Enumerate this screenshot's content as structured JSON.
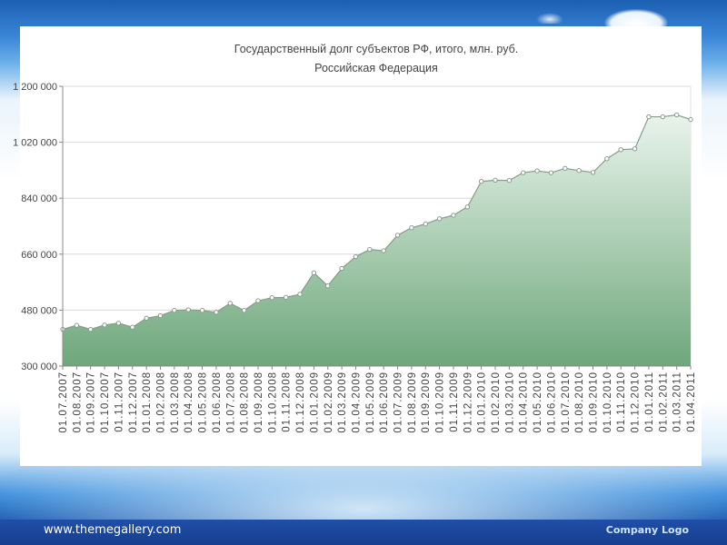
{
  "footer": {
    "url": "www.themegallery.com",
    "logo_text": "Company Logo"
  },
  "chart_data": {
    "type": "area",
    "title": "Государственный долг субъектов РФ, итого, млн. руб.",
    "subtitle": "Российская Федерация",
    "xlabel": "",
    "ylabel": "",
    "ylim": [
      300000,
      1200000
    ],
    "yticks": [
      300000,
      480000,
      660000,
      840000,
      1020000,
      1200000
    ],
    "ytick_labels": [
      "300 000",
      "480 000",
      "660 000",
      "840 000",
      "1 020 000",
      "1 200 000"
    ],
    "grid": true,
    "fill_color_top": "#e9f4ec",
    "fill_color_bottom": "#6ea77b",
    "line_color": "#8a9a8e",
    "categories": [
      "01.07.2007",
      "01.08.2007",
      "01.09.2007",
      "01.10.2007",
      "01.11.2007",
      "01.12.2007",
      "01.01.2008",
      "01.02.2008",
      "01.03.2008",
      "01.04.2008",
      "01.05.2008",
      "01.06.2008",
      "01.07.2008",
      "01.08.2008",
      "01.09.2008",
      "01.10.2008",
      "01.11.2008",
      "01.12.2008",
      "01.01.2009",
      "01.02.2009",
      "01.03.2009",
      "01.04.2009",
      "01.05.2009",
      "01.06.2009",
      "01.07.2009",
      "01.08.2009",
      "01.09.2009",
      "01.10.2009",
      "01.11.2009",
      "01.12.2009",
      "01.01.2010",
      "01.02.2010",
      "01.03.2010",
      "01.04.2010",
      "01.05.2010",
      "01.06.2010",
      "01.07.2010",
      "01.08.2010",
      "01.09.2010",
      "01.10.2010",
      "01.11.2010",
      "01.12.2010",
      "01.01.2011",
      "01.02.2011",
      "01.03.2011",
      "01.04.2011"
    ],
    "values": [
      418000,
      431000,
      418000,
      432000,
      438000,
      425000,
      454000,
      462000,
      479000,
      481000,
      479000,
      473000,
      502000,
      479000,
      510000,
      520000,
      521000,
      531000,
      600000,
      558000,
      614000,
      652000,
      675000,
      671000,
      721000,
      745000,
      757000,
      774000,
      785000,
      812000,
      894000,
      898000,
      897000,
      922000,
      928000,
      922000,
      936000,
      929000,
      923000,
      967000,
      996000,
      999000,
      1102000,
      1102000,
      1108000,
      1093000
    ]
  }
}
